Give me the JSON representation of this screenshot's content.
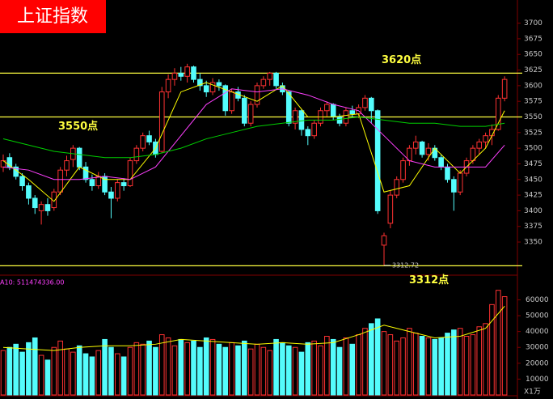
{
  "chart_data": {
    "type": "candlestick",
    "title": "上证指数",
    "up_color": "#ff3232",
    "down_color": "#54fcfc",
    "ylim": [
      3297,
      3737
    ],
    "yticks": [
      3350,
      3375,
      3400,
      3425,
      3450,
      3475,
      3500,
      3525,
      3550,
      3575,
      3600,
      3625,
      3650,
      3675,
      3700
    ],
    "candles": [
      [
        3470,
        3490,
        3462,
        3480
      ],
      [
        3485,
        3492,
        3465,
        3470
      ],
      [
        3470,
        3475,
        3450,
        3455
      ],
      [
        3455,
        3460,
        3432,
        3440
      ],
      [
        3440,
        3445,
        3410,
        3420
      ],
      [
        3420,
        3425,
        3395,
        3405
      ],
      [
        3400,
        3415,
        3378,
        3410
      ],
      [
        3410,
        3420,
        3392,
        3400
      ],
      [
        3405,
        3435,
        3400,
        3430
      ],
      [
        3430,
        3470,
        3425,
        3465
      ],
      [
        3465,
        3488,
        3455,
        3480
      ],
      [
        3482,
        3505,
        3470,
        3500
      ],
      [
        3500,
        3502,
        3465,
        3470
      ],
      [
        3470,
        3478,
        3445,
        3450
      ],
      [
        3450,
        3458,
        3432,
        3440
      ],
      [
        3440,
        3462,
        3435,
        3455
      ],
      [
        3455,
        3460,
        3425,
        3430
      ],
      [
        3430,
        3438,
        3388,
        3420
      ],
      [
        3420,
        3450,
        3415,
        3445
      ],
      [
        3445,
        3452,
        3432,
        3440
      ],
      [
        3440,
        3485,
        3438,
        3480
      ],
      [
        3480,
        3505,
        3475,
        3500
      ],
      [
        3500,
        3525,
        3495,
        3520
      ],
      [
        3520,
        3528,
        3505,
        3510
      ],
      [
        3510,
        3515,
        3485,
        3490
      ],
      [
        3495,
        3598,
        3492,
        3590
      ],
      [
        3590,
        3618,
        3580,
        3610
      ],
      [
        3610,
        3628,
        3600,
        3620
      ],
      [
        3620,
        3630,
        3608,
        3615
      ],
      [
        3615,
        3635,
        3605,
        3630
      ],
      [
        3630,
        3632,
        3605,
        3610
      ],
      [
        3610,
        3620,
        3592,
        3600
      ],
      [
        3600,
        3608,
        3582,
        3590
      ],
      [
        3590,
        3612,
        3585,
        3605
      ],
      [
        3605,
        3610,
        3592,
        3600
      ],
      [
        3600,
        3602,
        3552,
        3560
      ],
      [
        3560,
        3595,
        3555,
        3590
      ],
      [
        3590,
        3598,
        3575,
        3580
      ],
      [
        3580,
        3585,
        3535,
        3540
      ],
      [
        3540,
        3575,
        3535,
        3570
      ],
      [
        3570,
        3605,
        3565,
        3600
      ],
      [
        3600,
        3615,
        3595,
        3610
      ],
      [
        3610,
        3622,
        3600,
        3620
      ],
      [
        3620,
        3622,
        3595,
        3600
      ],
      [
        3600,
        3605,
        3585,
        3590
      ],
      [
        3590,
        3592,
        3535,
        3540
      ],
      [
        3540,
        3565,
        3530,
        3560
      ],
      [
        3560,
        3562,
        3520,
        3530
      ],
      [
        3530,
        3535,
        3505,
        3520
      ],
      [
        3520,
        3545,
        3515,
        3540
      ],
      [
        3540,
        3565,
        3535,
        3560
      ],
      [
        3560,
        3575,
        3550,
        3570
      ],
      [
        3570,
        3572,
        3545,
        3550
      ],
      [
        3550,
        3555,
        3535,
        3540
      ],
      [
        3540,
        3565,
        3535,
        3560
      ],
      [
        3560,
        3568,
        3550,
        3555
      ],
      [
        3555,
        3570,
        3548,
        3565
      ],
      [
        3565,
        3585,
        3560,
        3580
      ],
      [
        3580,
        3582,
        3540,
        3560
      ],
      [
        3560,
        3562,
        3395,
        3400
      ],
      [
        3345,
        3365,
        3312.72,
        3360
      ],
      [
        3380,
        3432,
        3372,
        3425
      ],
      [
        3425,
        3455,
        3420,
        3450
      ],
      [
        3450,
        3485,
        3445,
        3480
      ],
      [
        3480,
        3505,
        3472,
        3500
      ],
      [
        3500,
        3520,
        3490,
        3510
      ],
      [
        3510,
        3512,
        3485,
        3490
      ],
      [
        3490,
        3508,
        3480,
        3500
      ],
      [
        3500,
        3505,
        3480,
        3485
      ],
      [
        3485,
        3490,
        3465,
        3470
      ],
      [
        3470,
        3475,
        3445,
        3450
      ],
      [
        3450,
        3455,
        3400,
        3430
      ],
      [
        3430,
        3465,
        3425,
        3460
      ],
      [
        3460,
        3485,
        3455,
        3480
      ],
      [
        3480,
        3505,
        3475,
        3500
      ],
      [
        3500,
        3515,
        3490,
        3510
      ],
      [
        3510,
        3525,
        3500,
        3520
      ],
      [
        3520,
        3538,
        3505,
        3530
      ],
      [
        3530,
        3585,
        3528,
        3580
      ],
      [
        3580,
        3615,
        3575,
        3610
      ]
    ],
    "ma_lines": [
      {
        "color": "#ffff00",
        "x": [
          0,
          4,
          8,
          12,
          16,
          20,
          24,
          28,
          32,
          36,
          40,
          44,
          48,
          52,
          56,
          60,
          64,
          68,
          72,
          76,
          79
        ],
        "values": [
          3480,
          3450,
          3415,
          3470,
          3450,
          3450,
          3500,
          3590,
          3605,
          3590,
          3575,
          3600,
          3550,
          3550,
          3555,
          3430,
          3440,
          3500,
          3460,
          3500,
          3560
        ]
      },
      {
        "color": "#ff40ff",
        "x": [
          0,
          4,
          8,
          12,
          16,
          20,
          24,
          28,
          32,
          36,
          40,
          44,
          48,
          52,
          56,
          60,
          64,
          68,
          72,
          76,
          79
        ],
        "values": [
          3470,
          3465,
          3450,
          3450,
          3455,
          3450,
          3470,
          3520,
          3570,
          3595,
          3590,
          3595,
          3585,
          3570,
          3560,
          3520,
          3480,
          3470,
          3470,
          3470,
          3505
        ]
      },
      {
        "color": "#00d000",
        "x": [
          0,
          4,
          8,
          12,
          16,
          20,
          24,
          28,
          32,
          36,
          40,
          44,
          48,
          52,
          56,
          60,
          64,
          68,
          72,
          76,
          79
        ],
        "values": [
          3515,
          3505,
          3495,
          3490,
          3485,
          3485,
          3490,
          3500,
          3515,
          3525,
          3535,
          3540,
          3545,
          3545,
          3550,
          3545,
          3540,
          3540,
          3535,
          3535,
          3540
        ]
      }
    ],
    "reference_lines": [
      {
        "value": 3620,
        "label": "3620点",
        "color": "#ffff40"
      },
      {
        "value": 3550,
        "label": "3550点",
        "color": "#ffff40"
      },
      {
        "value": 3312,
        "label": "3312点",
        "color": "#ffff40"
      }
    ],
    "volume_caption": "A10: 511474336.00",
    "volume_unit": "X1万",
    "volume_ylim": [
      0,
      73000
    ],
    "volume_yticks": [
      10000,
      20000,
      30000,
      40000,
      50000,
      60000
    ],
    "volume": [
      28000,
      30000,
      32000,
      27000,
      33000,
      36000,
      25000,
      22000,
      30000,
      34000,
      29000,
      27000,
      31000,
      26000,
      24000,
      28000,
      35000,
      30000,
      26000,
      24000,
      30000,
      33000,
      32000,
      34000,
      30000,
      38000,
      36000,
      31000,
      35000,
      33000,
      34000,
      30000,
      36000,
      35000,
      32000,
      30000,
      33000,
      31000,
      34000,
      29000,
      32000,
      30000,
      28000,
      35000,
      33000,
      31000,
      30000,
      27000,
      33000,
      34000,
      31000,
      37000,
      35000,
      30000,
      36000,
      32000,
      38000,
      42000,
      45000,
      48000,
      40000,
      38000,
      34000,
      36000,
      42000,
      39000,
      37000,
      36000,
      35000,
      36000,
      39000,
      41000,
      42000,
      37000,
      38000,
      43000,
      45000,
      57000,
      66000,
      62000
    ],
    "volume_ma": {
      "color": "#ffff00",
      "x": [
        0,
        4,
        8,
        12,
        16,
        20,
        24,
        28,
        32,
        36,
        40,
        44,
        48,
        52,
        56,
        60,
        64,
        68,
        72,
        76,
        79
      ],
      "values": [
        30000,
        29000,
        28000,
        30000,
        31000,
        31000,
        32000,
        35000,
        34000,
        33000,
        32000,
        33000,
        32000,
        33000,
        38000,
        44000,
        40000,
        36000,
        37000,
        42000,
        56000
      ]
    }
  }
}
